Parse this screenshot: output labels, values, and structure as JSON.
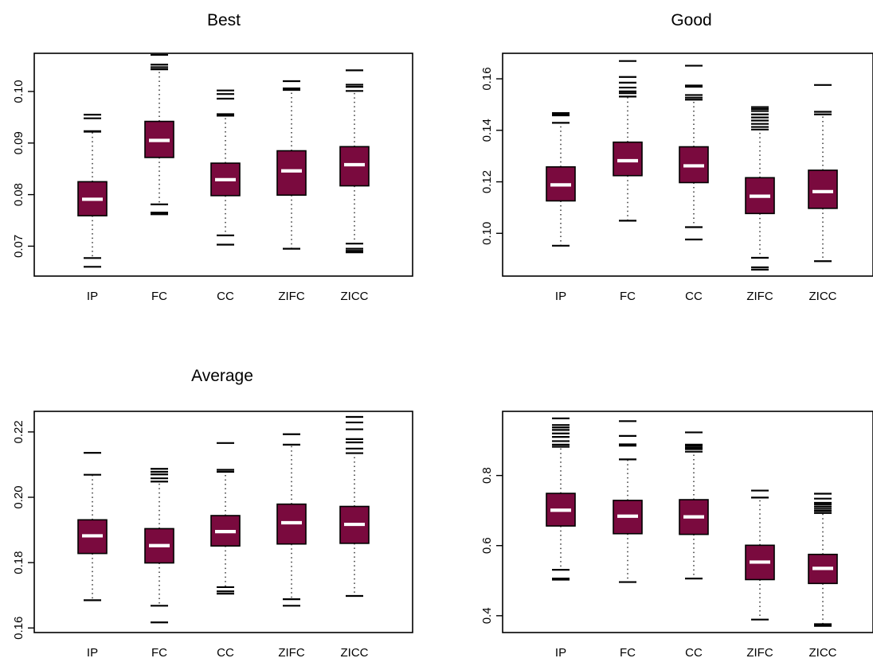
{
  "colors": {
    "box_fill": "#7a0a3e",
    "median": "#ffffff",
    "ink": "#000000",
    "background": "#ffffff"
  },
  "chart_data": [
    {
      "type": "boxplot",
      "title": "Best",
      "categories": [
        "IP",
        "FC",
        "CC",
        "ZIFC",
        "ZICC"
      ],
      "ylim": [
        0.0642,
        0.1074
      ],
      "yticks": [
        0.07,
        0.08,
        0.09,
        0.1
      ],
      "ytick_labels": [
        "0.07",
        "0.08",
        "0.09",
        "0.10"
      ],
      "boxes": [
        {
          "q1": 0.0759,
          "median": 0.0791,
          "q3": 0.0825,
          "whisker_low": 0.0677,
          "whisker_high": 0.0922,
          "outliers": [
            0.066,
            0.0923,
            0.0948,
            0.0955
          ]
        },
        {
          "q1": 0.0872,
          "median": 0.0905,
          "q3": 0.0942,
          "whisker_low": 0.0781,
          "whisker_high": 0.1043,
          "outliers": [
            0.0762,
            0.0765,
            0.1047,
            0.1052,
            0.1071
          ]
        },
        {
          "q1": 0.0798,
          "median": 0.0829,
          "q3": 0.0861,
          "whisker_low": 0.0721,
          "whisker_high": 0.0953,
          "outliers": [
            0.0703,
            0.0956,
            0.0986,
            0.0995,
            0.1002
          ]
        },
        {
          "q1": 0.0799,
          "median": 0.0846,
          "q3": 0.0885,
          "whisker_low": 0.0695,
          "whisker_high": 0.1003,
          "outliers": [
            0.1006,
            0.102
          ]
        },
        {
          "q1": 0.0817,
          "median": 0.0858,
          "q3": 0.0893,
          "whisker_low": 0.0705,
          "whisker_high": 0.1001,
          "outliers": [
            0.0688,
            0.0691,
            0.0695,
            0.1009,
            0.1013,
            0.1041
          ]
        }
      ]
    },
    {
      "type": "boxplot",
      "title": "Good",
      "categories": [
        "IP",
        "FC",
        "CC",
        "ZIFC",
        "ZICC"
      ],
      "ylim": [
        0.0834,
        0.1699
      ],
      "yticks": [
        0.1,
        0.12,
        0.14,
        0.16
      ],
      "ytick_labels": [
        "0.10",
        "0.12",
        "0.14",
        "0.16"
      ],
      "boxes": [
        {
          "q1": 0.1126,
          "median": 0.1188,
          "q3": 0.1258,
          "whisker_low": 0.0952,
          "whisker_high": 0.1429,
          "outliers": [
            0.1458,
            0.1464,
            0.1467
          ]
        },
        {
          "q1": 0.1224,
          "median": 0.1282,
          "q3": 0.1354,
          "whisker_low": 0.1049,
          "whisker_high": 0.1531,
          "outliers": [
            0.1544,
            0.1551,
            0.1566,
            0.1585,
            0.1607,
            0.1669
          ]
        },
        {
          "q1": 0.1197,
          "median": 0.1262,
          "q3": 0.1336,
          "whisker_low": 0.1024,
          "whisker_high": 0.1519,
          "outliers": [
            0.0976,
            0.1527,
            0.1537,
            0.1569,
            0.1574,
            0.1651
          ]
        },
        {
          "q1": 0.1077,
          "median": 0.1144,
          "q3": 0.1216,
          "whisker_low": 0.0905,
          "whisker_high": 0.1403,
          "outliers": [
            0.0859,
            0.0868,
            0.1413,
            0.1425,
            0.1438,
            0.145,
            0.1462,
            0.1475,
            0.1483,
            0.149
          ]
        },
        {
          "q1": 0.1097,
          "median": 0.1162,
          "q3": 0.1245,
          "whisker_low": 0.0892,
          "whisker_high": 0.1462,
          "outliers": [
            0.1472,
            0.1576
          ]
        }
      ]
    },
    {
      "type": "boxplot",
      "title": "Average",
      "categories": [
        "IP",
        "FC",
        "CC",
        "ZIFC",
        "ZICC"
      ],
      "ylim": [
        0.1586,
        0.2263
      ],
      "yticks": [
        0.16,
        0.18,
        0.2,
        0.22
      ],
      "ytick_labels": [
        "0.16",
        "0.18",
        "0.20",
        "0.22"
      ],
      "boxes": [
        {
          "q1": 0.1828,
          "median": 0.1882,
          "q3": 0.1931,
          "whisker_low": 0.1685,
          "whisker_high": 0.2069,
          "outliers": [
            0.2136
          ]
        },
        {
          "q1": 0.1799,
          "median": 0.1852,
          "q3": 0.1904,
          "whisker_low": 0.1668,
          "whisker_high": 0.2048,
          "outliers": [
            0.1617,
            0.2058,
            0.207,
            0.2078,
            0.2087
          ]
        },
        {
          "q1": 0.1851,
          "median": 0.1895,
          "q3": 0.1944,
          "whisker_low": 0.1725,
          "whisker_high": 0.2078,
          "outliers": [
            0.1705,
            0.1712,
            0.2084,
            0.2166
          ]
        },
        {
          "q1": 0.1857,
          "median": 0.1922,
          "q3": 0.1979,
          "whisker_low": 0.1688,
          "whisker_high": 0.2161,
          "outliers": [
            0.1668,
            0.2193
          ]
        },
        {
          "q1": 0.1859,
          "median": 0.1917,
          "q3": 0.1972,
          "whisker_low": 0.1698,
          "whisker_high": 0.2135,
          "outliers": [
            0.2149,
            0.2168,
            0.2178,
            0.2208,
            0.2229,
            0.2246
          ]
        }
      ]
    },
    {
      "type": "boxplot",
      "title": "",
      "categories": [
        "IP",
        "FC",
        "CC",
        "ZIFC",
        "ZICC"
      ],
      "ylim": [
        0.352,
        0.983
      ],
      "yticks": [
        0.4,
        0.6,
        0.8
      ],
      "ytick_labels": [
        "0.4",
        "0.6",
        "0.8"
      ],
      "boxes": [
        {
          "q1": 0.656,
          "median": 0.701,
          "q3": 0.749,
          "whisker_low": 0.531,
          "whisker_high": 0.882,
          "outliers": [
            0.503,
            0.506,
            0.888,
            0.898,
            0.91,
            0.92,
            0.93,
            0.937,
            0.944,
            0.963
          ]
        },
        {
          "q1": 0.634,
          "median": 0.684,
          "q3": 0.729,
          "whisker_low": 0.496,
          "whisker_high": 0.846,
          "outliers": [
            0.885,
            0.889,
            0.913,
            0.955
          ]
        },
        {
          "q1": 0.632,
          "median": 0.682,
          "q3": 0.731,
          "whisker_low": 0.506,
          "whisker_high": 0.868,
          "outliers": [
            0.875,
            0.879,
            0.884,
            0.888,
            0.923
          ]
        },
        {
          "q1": 0.503,
          "median": 0.553,
          "q3": 0.601,
          "whisker_low": 0.389,
          "whisker_high": 0.737,
          "outliers": [
            0.757
          ]
        },
        {
          "q1": 0.492,
          "median": 0.535,
          "q3": 0.575,
          "whisker_low": 0.376,
          "whisker_high": 0.693,
          "outliers": [
            0.371,
            0.699,
            0.705,
            0.711,
            0.717,
            0.722,
            0.734,
            0.748
          ]
        }
      ]
    }
  ]
}
